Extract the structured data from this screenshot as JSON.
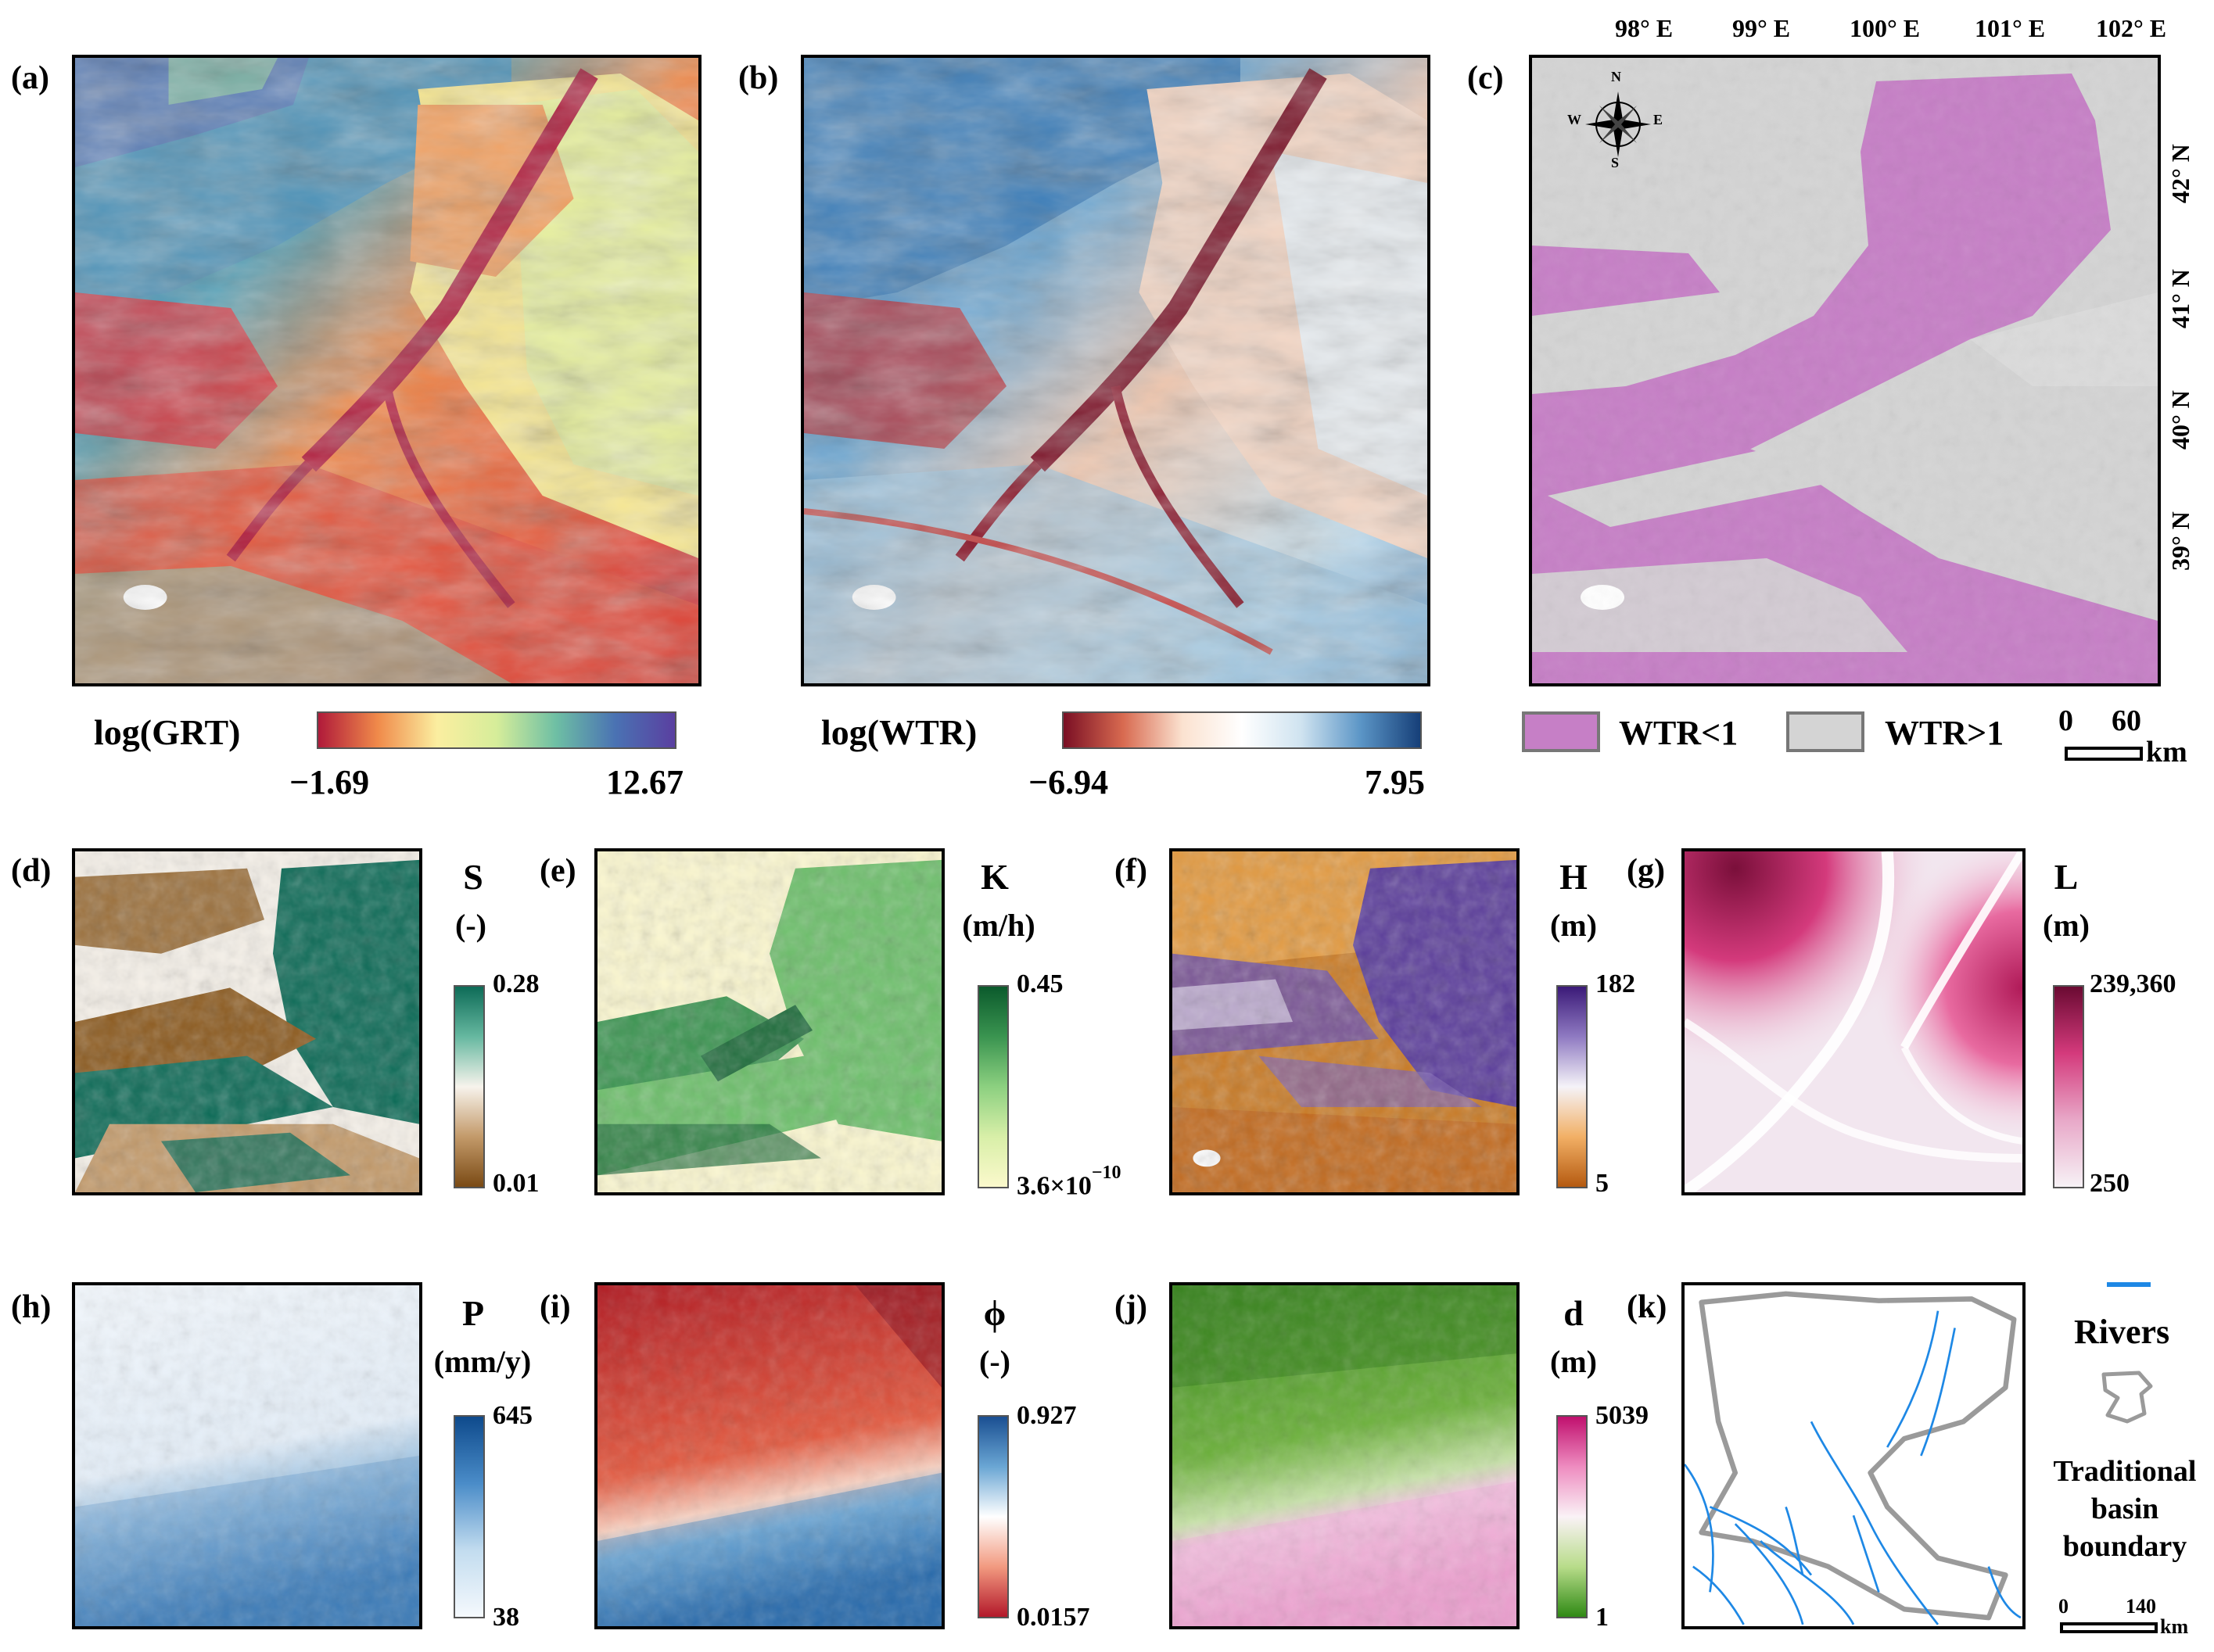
{
  "panels": {
    "a": {
      "label": "(a)",
      "cb_title": "log(GRT)",
      "min": "−1.69",
      "max": "12.67"
    },
    "b": {
      "label": "(b)",
      "cb_title": "log(WTR)",
      "min": "−6.94",
      "max": "7.95"
    },
    "c": {
      "label": "(c)",
      "legend": [
        {
          "label": "WTR<1",
          "color": "#c67fc6"
        },
        {
          "label": "WTR>1",
          "color": "#d4d4d4"
        }
      ],
      "lon_ticks": [
        "98° E",
        "99° E",
        "100° E",
        "101° E",
        "102° E"
      ],
      "lat_ticks": [
        "42° N",
        "41° N",
        "40° N",
        "39° N"
      ],
      "compass": {
        "n": "N",
        "s": "S",
        "e": "E",
        "w": "W"
      },
      "scale": {
        "zero": "0",
        "val": "60",
        "unit": "km"
      }
    },
    "d": {
      "label": "(d)",
      "title": "S",
      "unit": "(-)",
      "max": "0.28",
      "min": "0.01"
    },
    "e": {
      "label": "(e)",
      "title": "K",
      "unit": "(m/h)",
      "max": "0.45",
      "min_base": "3.6×10",
      "min_exp": "−10"
    },
    "f": {
      "label": "(f)",
      "title": "H",
      "unit": "(m)",
      "max": "182",
      "min": "5"
    },
    "g": {
      "label": "(g)",
      "title": "L",
      "unit": "(m)",
      "max": "239,360",
      "min": "250"
    },
    "h": {
      "label": "(h)",
      "title": "P",
      "unit": "(mm/y)",
      "max": "645",
      "min": "38"
    },
    "i": {
      "label": "(i)",
      "title": "ϕ",
      "unit": "(-)",
      "max": "0.927",
      "min": "0.0157"
    },
    "j": {
      "label": "(j)",
      "title": "d",
      "unit": "(m)",
      "max": "5039",
      "min": "1"
    },
    "k": {
      "label": "(k)",
      "rivers": "Rivers",
      "boundary": [
        "Traditional",
        "basin",
        "boundary"
      ],
      "scale": {
        "zero": "0",
        "val": "140",
        "unit": "km"
      },
      "river_color": "#1e88e5"
    }
  }
}
